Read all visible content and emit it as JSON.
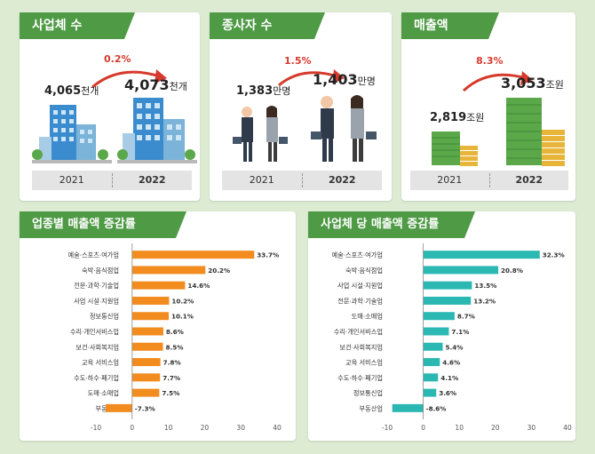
{
  "top_cards": [
    {
      "title": "사업체 수",
      "increase": "0.2%",
      "value_2021": "4,065",
      "unit_2021": "천개",
      "value_2022": "4,073",
      "unit_2022": "천개",
      "year_2021": "2021",
      "year_2022": "2022"
    },
    {
      "title": "종사자 수",
      "increase": "1.5%",
      "value_2021": "1,383",
      "unit_2021": "만명",
      "value_2022": "1,403",
      "unit_2022": "만명",
      "year_2021": "2021",
      "year_2022": "2022"
    },
    {
      "title": "매출액",
      "increase": "8.3%",
      "value_2021": "2,819",
      "unit_2021": "조원",
      "value_2022": "3,053",
      "unit_2022": "조원",
      "year_2021": "2021",
      "year_2022": "2022"
    }
  ],
  "chart_data": [
    {
      "type": "bar",
      "orientation": "horizontal",
      "title": "업종별 매출액 증감률",
      "categories": [
        "예술·스포츠·여가업",
        "숙박·음식점업",
        "전문·과학·기술업",
        "사업 시설·지원업",
        "정보통신업",
        "수리·개인서비스업",
        "보건·사회복지업",
        "교육 서비스업",
        "수도·하수·폐기업",
        "도매·소매업",
        "부동산업"
      ],
      "values": [
        33.7,
        20.2,
        14.6,
        10.2,
        10.1,
        8.6,
        8.5,
        7.8,
        7.7,
        7.5,
        -7.3
      ],
      "value_labels": [
        "33.7%",
        "20.2%",
        "14.6%",
        "10.2%",
        "10.1%",
        "8.6%",
        "8.5%",
        "7.8%",
        "7.7%",
        "7.5%",
        "-7.3%"
      ],
      "xlim": [
        -10,
        40
      ],
      "xticks": [
        "-10",
        "0",
        "10",
        "20",
        "30",
        "40"
      ],
      "color": "#f28c1e",
      "grid": false
    },
    {
      "type": "bar",
      "orientation": "horizontal",
      "title": "사업체 당 매출액 증감률",
      "categories": [
        "예술·스포츠·여가업",
        "숙박·음식점업",
        "사업 시설·지원업",
        "전문·과학·기술업",
        "도매·소매업",
        "수리·개인서비스업",
        "보건·사회복지업",
        "교육 서비스업",
        "수도·하수·폐기업",
        "정보통신업",
        "부동산업"
      ],
      "values": [
        32.3,
        20.8,
        13.5,
        13.2,
        8.7,
        7.1,
        5.4,
        4.6,
        4.1,
        3.6,
        -8.6
      ],
      "value_labels": [
        "32.3%",
        "20.8%",
        "13.5%",
        "13.2%",
        "8.7%",
        "7.1%",
        "5.4%",
        "4.6%",
        "4.1%",
        "3.6%",
        "-8.6%"
      ],
      "xlim": [
        -10,
        40
      ],
      "xticks": [
        "-10",
        "0",
        "10",
        "20",
        "30",
        "40"
      ],
      "color": "#2bb8b3",
      "grid": false
    }
  ],
  "colors": {
    "green": "#4f9a45",
    "orange": "#f28c1e",
    "teal": "#2bb8b3",
    "red": "#d63a2c",
    "money": "#5aa84a",
    "coin": "#e6b53a"
  }
}
